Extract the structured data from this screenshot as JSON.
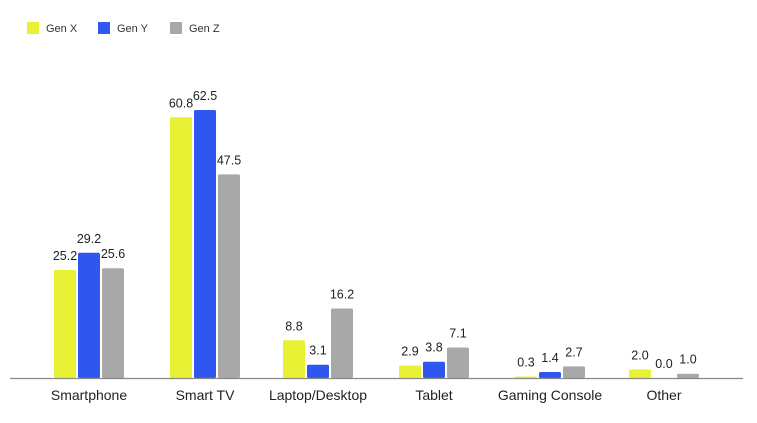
{
  "chart_data": {
    "type": "bar",
    "categories": [
      "Smartphone",
      "Smart TV",
      "Laptop/Desktop",
      "Tablet",
      "Gaming Console",
      "Other"
    ],
    "series": [
      {
        "name": "Gen X",
        "color": "#e8f134",
        "values": [
          25.2,
          60.8,
          8.8,
          2.9,
          0.3,
          2.0
        ]
      },
      {
        "name": "Gen Y",
        "color": "#3056f0",
        "values": [
          29.2,
          62.5,
          3.1,
          3.8,
          1.4,
          0.0
        ]
      },
      {
        "name": "Gen Z",
        "color": "#a8a8a8",
        "values": [
          25.6,
          47.5,
          16.2,
          7.1,
          2.7,
          1.0
        ]
      }
    ],
    "value_labels": [
      [
        "25.2",
        "60.8",
        "8.8",
        "2.9",
        "0.3",
        "2.0"
      ],
      [
        "29.2",
        "62.5",
        "3.1",
        "3.8",
        "1.4",
        "0.0"
      ],
      [
        "25.6",
        "47.5",
        "16.2",
        "7.1",
        "2.7",
        "1.0"
      ]
    ],
    "ylim": [
      0,
      70
    ],
    "title": "",
    "xlabel": "",
    "ylabel": "",
    "legend_position": "top-left",
    "grid": false,
    "axis_color": "#888888"
  }
}
